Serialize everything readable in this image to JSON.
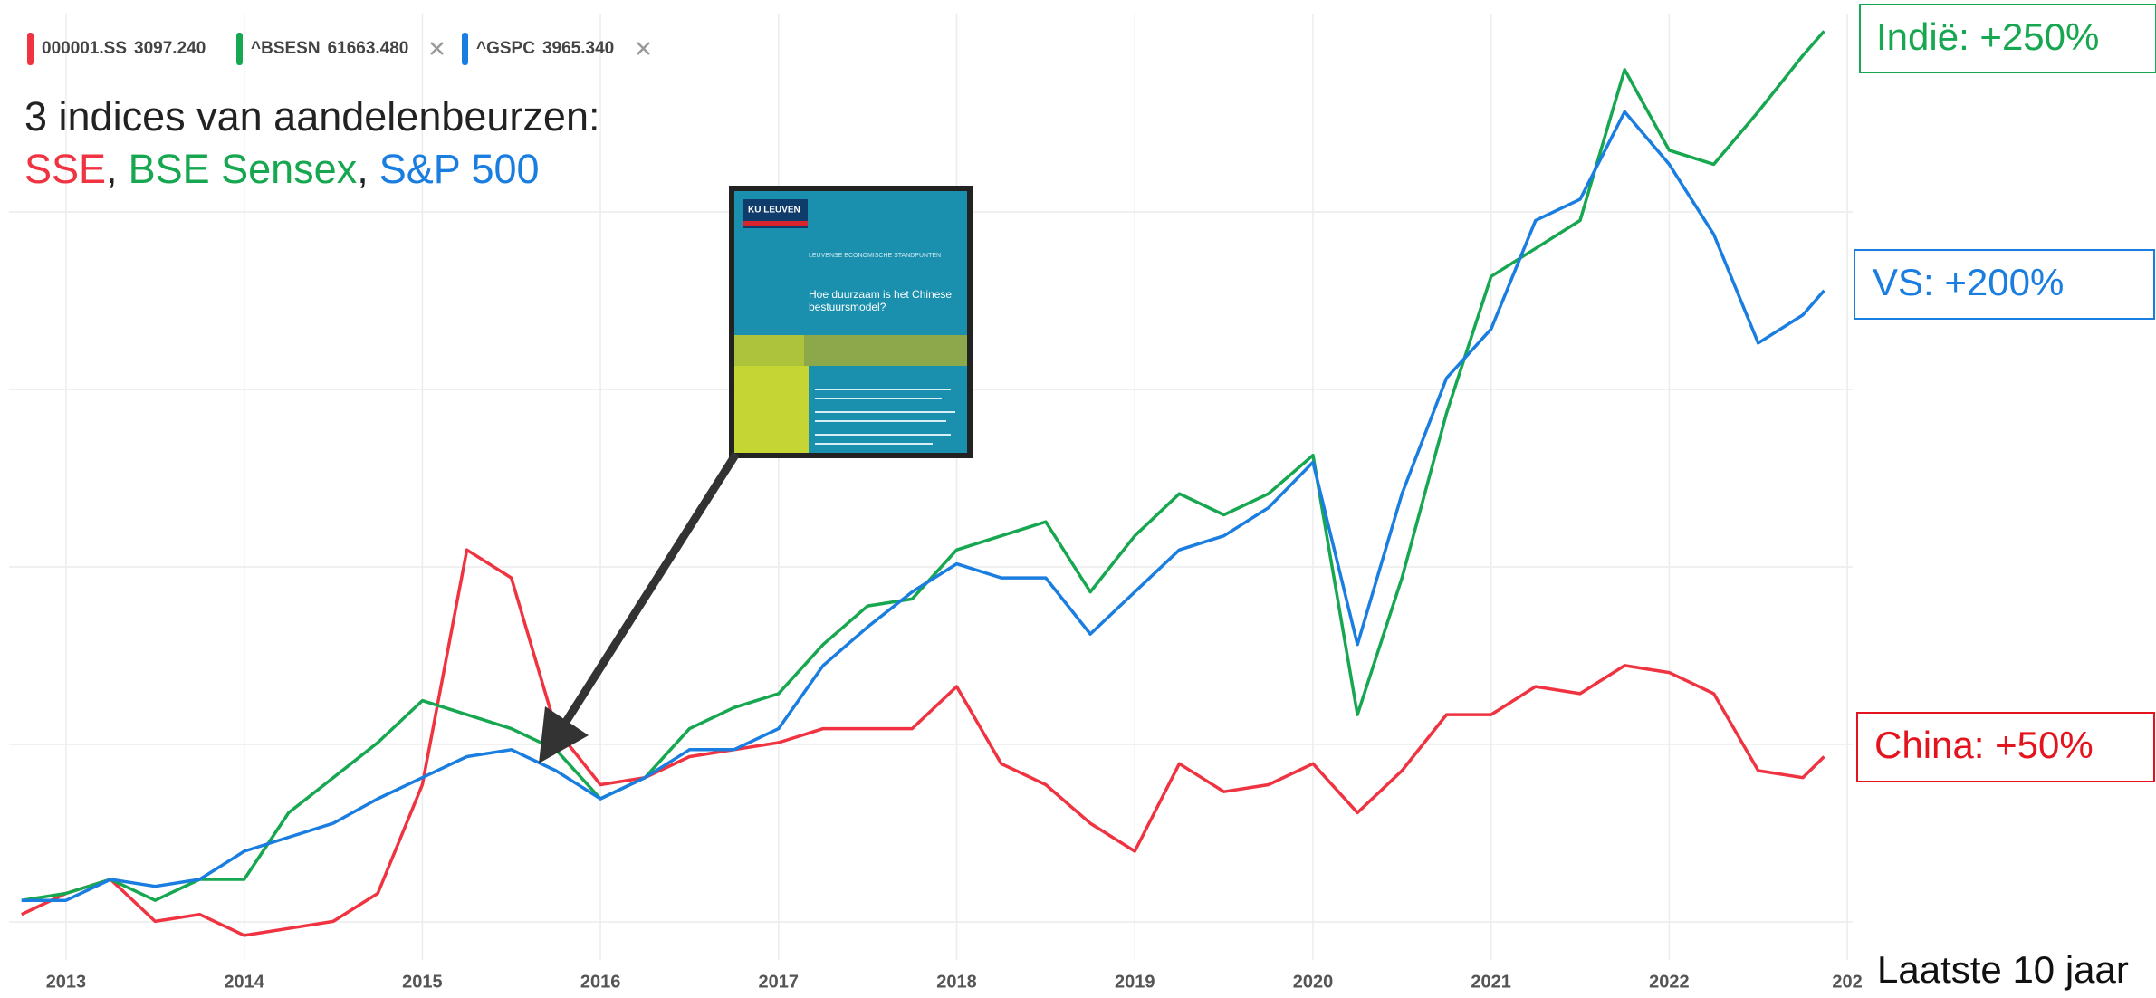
{
  "chart_data": {
    "type": "line",
    "legend": [
      {
        "symbol": "000001.SS",
        "price": "3097.240"
      },
      {
        "symbol": "^BSESN",
        "price": "61663.480"
      },
      {
        "symbol": "^GSPC",
        "price": "3965.340"
      }
    ],
    "title": "3 indices van aandelenbeurzen:",
    "separator": ",",
    "x": [
      2012.75,
      2013.0,
      2013.25,
      2013.5,
      2013.75,
      2014.0,
      2014.25,
      2014.5,
      2014.75,
      2015.0,
      2015.25,
      2015.5,
      2015.75,
      2016.0,
      2016.25,
      2016.5,
      2016.75,
      2017.0,
      2017.25,
      2017.5,
      2017.75,
      2018.0,
      2018.25,
      2018.5,
      2018.75,
      2019.0,
      2019.25,
      2019.5,
      2019.75,
      2020.0,
      2020.25,
      2020.5,
      2020.75,
      2021.0,
      2021.25,
      2021.5,
      2021.75,
      2022.0,
      2022.25,
      2022.5,
      2022.75,
      2022.87
    ],
    "xlim": [
      2012.68,
      2023.03
    ],
    "xticks": [
      2013,
      2014,
      2015,
      2016,
      2017,
      2018,
      2019,
      2020,
      2021,
      2022,
      {
        "value": 2023,
        "label": "202"
      }
    ],
    "ylim": [
      -15,
      255
    ],
    "grid": true,
    "series": [
      {
        "name": "SSE",
        "color": "#ef3340",
        "values": [
          -2,
          4,
          8,
          -4,
          -2,
          -8,
          -6,
          -4,
          4,
          35,
          102,
          94,
          51,
          35,
          37,
          43,
          45,
          47,
          51,
          51,
          51,
          63,
          41,
          35,
          24,
          16,
          41,
          33,
          35,
          41,
          27,
          39,
          55,
          55,
          63,
          61,
          69,
          67,
          61,
          39,
          37,
          43
        ]
      },
      {
        "name": "BSE Sensex",
        "color": "#16a750",
        "values": [
          2,
          4,
          8,
          2,
          8,
          8,
          27,
          37,
          47,
          59,
          55,
          51,
          45,
          31,
          37,
          51,
          57,
          61,
          75,
          86,
          88,
          102,
          106,
          110,
          90,
          106,
          118,
          112,
          118,
          129,
          55,
          94,
          141,
          180,
          188,
          196,
          239,
          216,
          212,
          227,
          243,
          250
        ]
      },
      {
        "name": "S&P 500",
        "color": "#1a7de0",
        "values": [
          2,
          2,
          8,
          6,
          8,
          16,
          20,
          24,
          31,
          37,
          43,
          45,
          39,
          31,
          37,
          45,
          45,
          51,
          69,
          80,
          90,
          98,
          94,
          94,
          78,
          90,
          102,
          106,
          114,
          127,
          75,
          118,
          151,
          165,
          196,
          202,
          227,
          212,
          192,
          161,
          169,
          176
        ]
      }
    ],
    "annotations": [
      {
        "text": "Indië: +250%",
        "color": "#16a750"
      },
      {
        "text": "VS: +200%",
        "color": "#1a7de0"
      },
      {
        "text": "China: +50%",
        "color": "#e4141e"
      },
      {
        "text": "Laatste 10 jaar",
        "color": "#111111"
      }
    ],
    "inset": {
      "brand": "KU LEUVEN",
      "series_title": "LEUVENSE ECONOMISCHE STANDPUNTEN",
      "heading": "Hoe duurzaam is het Chinese bestuursmodel?"
    }
  }
}
